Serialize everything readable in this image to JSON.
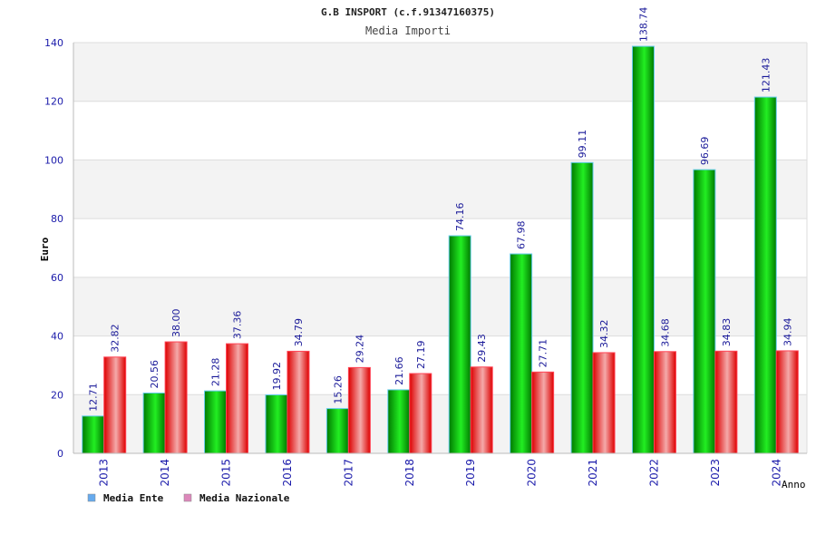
{
  "chart_data": {
    "type": "bar",
    "title": "G.B INSPORT (c.f.91347160375)",
    "subtitle": "Media Importi",
    "xlabel": "Anno",
    "ylabel": "Euro",
    "ylim": [
      0,
      140
    ],
    "yticks": [
      0,
      20,
      40,
      60,
      80,
      100,
      120,
      140
    ],
    "grid": true,
    "legend_position": "bottom-left",
    "categories": [
      "2013",
      "2014",
      "2015",
      "2016",
      "2017",
      "2018",
      "2019",
      "2020",
      "2021",
      "2022",
      "2023",
      "2024"
    ],
    "series": [
      {
        "name": "Media Ente",
        "color": "#00aa00",
        "legend_color": "#66aaee",
        "values": [
          12.71,
          20.56,
          21.28,
          19.92,
          15.26,
          21.66,
          74.16,
          67.98,
          99.11,
          138.74,
          96.69,
          121.43
        ],
        "labels": [
          "12.71",
          "20.56",
          "21.28",
          "19.92",
          "15.26",
          "21.66",
          "74.16",
          "67.98",
          "99.11",
          "138.74",
          "96.69",
          "121.43"
        ]
      },
      {
        "name": "Media Nazionale",
        "color": "#ee2222",
        "legend_color": "#dd88bb",
        "values": [
          32.82,
          38.0,
          37.36,
          34.79,
          29.24,
          27.19,
          29.43,
          27.71,
          34.32,
          34.68,
          34.83,
          34.94
        ],
        "labels": [
          "32.82",
          "38.00",
          "37.36",
          "34.79",
          "29.24",
          "27.19",
          "29.43",
          "27.71",
          "34.32",
          "34.68",
          "34.83",
          "34.94"
        ]
      }
    ]
  }
}
